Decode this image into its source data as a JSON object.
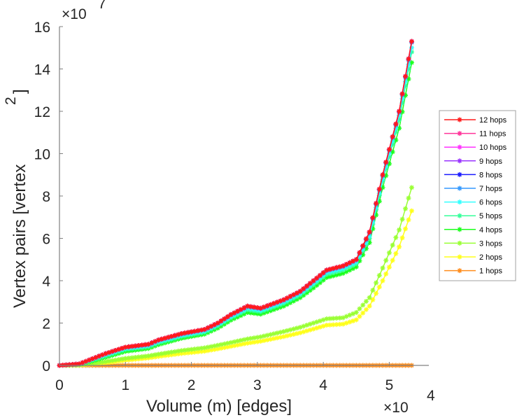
{
  "chart_data": {
    "type": "line",
    "title": "",
    "xlabel": "Volume (m) [edges]",
    "ylabel": "Vertex pairs [vertex",
    "ylabel_superscript": "2",
    "ylabel_close": "]",
    "x_multiplier": "×10",
    "x_multiplier_exp": "4",
    "y_multiplier": "×10",
    "y_multiplier_exp": "7",
    "xlim": [
      0,
      5.6
    ],
    "ylim": [
      0,
      16
    ],
    "xticks": [
      0,
      1,
      2,
      3,
      4,
      5
    ],
    "xtick_labels": [
      "0",
      "1",
      "2",
      "3",
      "4",
      "5"
    ],
    "yticks": [
      0,
      2,
      4,
      6,
      8,
      10,
      12,
      14,
      16
    ],
    "ytick_labels": [
      "0",
      "2",
      "4",
      "6",
      "8",
      "10",
      "12",
      "14",
      "16"
    ],
    "grid": false,
    "legend_position": "right",
    "marker": "asterisk",
    "x": [
      0,
      0.3,
      0.7,
      1.0,
      1.35,
      1.5,
      1.85,
      2.2,
      2.4,
      2.6,
      2.85,
      3.05,
      3.4,
      3.65,
      3.85,
      4.05,
      4.3,
      4.5,
      4.7,
      4.9,
      5.15,
      5.34
    ],
    "series": [
      {
        "name": "12 hops",
        "color": "#ff1a1a",
        "values": [
          0,
          0.07,
          0.56,
          0.86,
          1.0,
          1.2,
          1.5,
          1.7,
          2.0,
          2.4,
          2.8,
          2.7,
          3.1,
          3.5,
          4.0,
          4.5,
          4.7,
          5.0,
          6.3,
          9.0,
          12.0,
          15.3
        ]
      },
      {
        "name": "11 hops",
        "color": "#ff3399",
        "values": [
          0,
          0.07,
          0.56,
          0.86,
          1.0,
          1.2,
          1.5,
          1.7,
          2.0,
          2.4,
          2.8,
          2.7,
          3.1,
          3.5,
          4.0,
          4.5,
          4.7,
          5.0,
          6.3,
          9.0,
          12.0,
          15.3
        ]
      },
      {
        "name": "10 hops",
        "color": "#ff33ff",
        "values": [
          0,
          0.07,
          0.56,
          0.86,
          1.0,
          1.2,
          1.5,
          1.7,
          2.0,
          2.4,
          2.8,
          2.7,
          3.1,
          3.5,
          4.0,
          4.5,
          4.7,
          5.0,
          6.3,
          9.0,
          12.0,
          15.3
        ]
      },
      {
        "name": "9 hops",
        "color": "#9933ff",
        "values": [
          0,
          0.07,
          0.56,
          0.86,
          1.0,
          1.2,
          1.5,
          1.7,
          2.0,
          2.4,
          2.8,
          2.7,
          3.1,
          3.5,
          4.0,
          4.5,
          4.7,
          5.0,
          6.3,
          9.0,
          12.0,
          15.3
        ]
      },
      {
        "name": "8 hops",
        "color": "#1a1aff",
        "values": [
          0,
          0.07,
          0.56,
          0.86,
          1.0,
          1.2,
          1.5,
          1.7,
          2.0,
          2.4,
          2.8,
          2.7,
          3.1,
          3.5,
          4.0,
          4.5,
          4.7,
          5.0,
          6.3,
          9.0,
          12.0,
          15.3
        ]
      },
      {
        "name": "7 hops",
        "color": "#3399ff",
        "values": [
          0,
          0.07,
          0.55,
          0.85,
          0.98,
          1.18,
          1.48,
          1.68,
          1.98,
          2.38,
          2.77,
          2.68,
          3.08,
          3.47,
          3.97,
          4.47,
          4.67,
          4.97,
          6.25,
          8.95,
          11.95,
          15.25
        ]
      },
      {
        "name": "6 hops",
        "color": "#33ffff",
        "values": [
          0,
          0.06,
          0.5,
          0.8,
          0.93,
          1.12,
          1.42,
          1.62,
          1.92,
          2.3,
          2.7,
          2.6,
          3.0,
          3.4,
          3.88,
          4.38,
          4.58,
          4.88,
          6.1,
          8.8,
          11.8,
          15.0
        ]
      },
      {
        "name": "5 hops",
        "color": "#33ff99",
        "values": [
          0,
          0.05,
          0.45,
          0.75,
          0.88,
          1.06,
          1.36,
          1.56,
          1.86,
          2.24,
          2.62,
          2.53,
          2.92,
          3.32,
          3.8,
          4.3,
          4.5,
          4.8,
          6.0,
          8.7,
          11.6,
          14.8
        ]
      },
      {
        "name": "4 hops",
        "color": "#1aff1a",
        "values": [
          0,
          0.04,
          0.38,
          0.66,
          0.8,
          0.98,
          1.28,
          1.48,
          1.76,
          2.14,
          2.5,
          2.42,
          2.8,
          3.2,
          3.66,
          4.15,
          4.35,
          4.65,
          5.8,
          8.4,
          11.2,
          14.3
        ]
      },
      {
        "name": "3 hops",
        "color": "#99ff33",
        "values": [
          0,
          0.02,
          0.18,
          0.33,
          0.45,
          0.53,
          0.7,
          0.83,
          0.95,
          1.08,
          1.25,
          1.35,
          1.6,
          1.8,
          2.0,
          2.2,
          2.25,
          2.5,
          3.2,
          4.6,
          6.4,
          8.4
        ]
      },
      {
        "name": "2 hops",
        "color": "#ffff1a",
        "values": [
          0,
          0.01,
          0.12,
          0.24,
          0.35,
          0.42,
          0.56,
          0.67,
          0.78,
          0.9,
          1.05,
          1.14,
          1.36,
          1.54,
          1.72,
          1.9,
          1.95,
          2.15,
          2.8,
          4.0,
          5.6,
          7.3
        ]
      },
      {
        "name": "1 hops",
        "color": "#ff8c1a",
        "values": [
          0,
          0,
          0,
          0,
          0,
          0,
          0,
          0,
          0,
          0,
          0,
          0,
          0,
          0,
          0,
          0,
          0,
          0,
          0,
          0,
          0,
          0
        ]
      }
    ]
  }
}
